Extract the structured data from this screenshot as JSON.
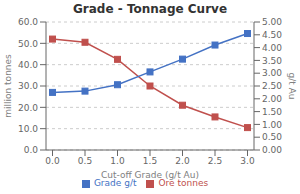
{
  "chart_data": {
    "type": "line",
    "title": "Grade - Tonnage Curve",
    "xlabel": "Cut-off Grade (g/t Au)",
    "ylabel": "million tonnes",
    "y2label": "g/t Au",
    "x": [
      0.0,
      0.5,
      1.0,
      1.5,
      2.0,
      2.5,
      3.0
    ],
    "series": [
      {
        "name": "Ore tonnes",
        "color": "#c0504d",
        "marker": "square",
        "values": [
          52.0,
          50.5,
          42.5,
          30.0,
          21.0,
          15.5,
          10.5
        ]
      },
      {
        "name": "Grade g/t",
        "color": "#4472c4",
        "marker": "square",
        "axis": "y2",
        "values": [
          2.25,
          2.3,
          2.55,
          3.05,
          3.55,
          4.1,
          4.55
        ]
      }
    ],
    "xlim": [
      -0.1,
      3.1
    ],
    "xticks": [
      {
        "value": 0.0,
        "label": "0.0"
      },
      0.5,
      {
        "value": 1.0,
        "label": "1.0"
      },
      1.5,
      {
        "value": 2.0,
        "label": "2.0"
      },
      2.5,
      {
        "value": 3.0,
        "label": "3.0"
      }
    ],
    "ylim": [
      0.0,
      60.0
    ],
    "yticks": [
      {
        "value": 0.0,
        "label": "0.0"
      },
      {
        "value": 10.0,
        "label": "10.0"
      },
      {
        "value": 20.0,
        "label": "20.0"
      },
      {
        "value": 30.0,
        "label": "30.0"
      },
      {
        "value": 40.0,
        "label": "40.0"
      },
      {
        "value": 50.0,
        "label": "50.0"
      },
      {
        "value": 60.0,
        "label": "60.0"
      }
    ],
    "y2lim": [
      0.0,
      5.0
    ],
    "y2ticks": [
      {
        "value": 0.0,
        "label": "0.00"
      },
      {
        "value": 0.5,
        "label": "0.50"
      },
      {
        "value": 1.0,
        "label": "1.00"
      },
      {
        "value": 1.5,
        "label": "1.50"
      },
      {
        "value": 2.0,
        "label": "2.00"
      },
      {
        "value": 2.5,
        "label": "2.50"
      },
      {
        "value": 3.0,
        "label": "3.00"
      },
      {
        "value": 3.5,
        "label": "3.50"
      },
      {
        "value": 4.0,
        "label": "4.00"
      },
      {
        "value": 4.5,
        "label": "4.50"
      },
      {
        "value": 5.0,
        "label": "5.00"
      }
    ],
    "grid": true,
    "legend": "bottom"
  }
}
